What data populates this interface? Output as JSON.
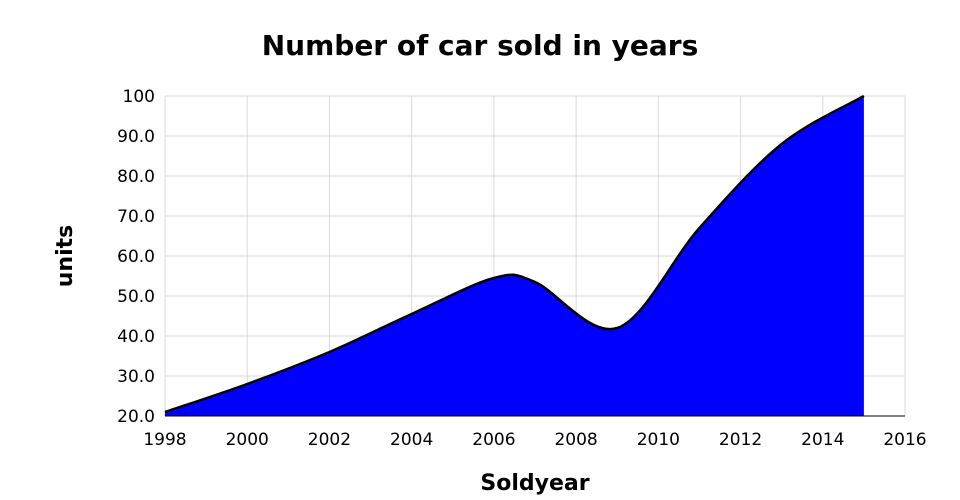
{
  "chart_data": {
    "type": "area",
    "title": "Number of car sold in years",
    "xlabel": "Soldyear",
    "ylabel": "units",
    "x": [
      1998,
      2000,
      2002,
      2004,
      2006,
      2007,
      2009,
      2011,
      2013,
      2015
    ],
    "series": [
      {
        "values": [
          21,
          28,
          36,
          45.5,
          54.5,
          53.5,
          42,
          67,
          88,
          100
        ]
      }
    ],
    "xlim": [
      1998,
      2016
    ],
    "ylim": [
      20,
      100
    ],
    "x_ticks": [
      1998,
      2000,
      2002,
      2004,
      2006,
      2008,
      2010,
      2012,
      2014,
      2016
    ],
    "y_ticks": [
      20,
      30,
      40,
      50,
      60,
      70,
      80,
      90,
      100
    ],
    "x_tick_labels": [
      "1998",
      "2000",
      "2002",
      "2004",
      "2006",
      "2008",
      "2010",
      "2012",
      "2014",
      "2016"
    ],
    "y_tick_labels": [
      "20.0",
      "30.0",
      "40.0",
      "50.0",
      "60.0",
      "70.0",
      "80.0",
      "90.0",
      "100"
    ],
    "fill_color": "#0000ff",
    "line_color": "#000000",
    "grid": true,
    "legend": "none"
  }
}
